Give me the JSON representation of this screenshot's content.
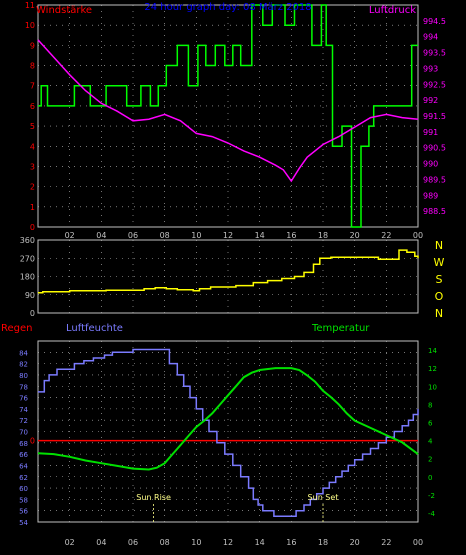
{
  "colors": {
    "background": "#000000",
    "panel_border": "#c0c0c0",
    "grid": "#c0c0c0",
    "wind": "#00ff00",
    "pressure": "#ff00ff",
    "direction": "#ffff00",
    "humidity": "#7b7bff",
    "temperature": "#00e000",
    "rain": "#ff0000",
    "axis_red": "#ff0000",
    "axis_magenta": "#ff00ff",
    "axis_white": "#c0c0c0",
    "axis_yellow": "#ffff00",
    "axis_green": "#00e000",
    "axis_blue": "#7b7bff",
    "title_blue": "#0000ff",
    "sun_label": "#ffff88"
  },
  "chart_data": [
    {
      "type": "line",
      "title": "24 hour graph day: 08 März 2018",
      "left_label": "Windstärke",
      "right_label": "Luftdruck",
      "x_ticks": [
        "02",
        "04",
        "06",
        "08",
        "10",
        "12",
        "14",
        "16",
        "18",
        "20",
        "22",
        "00"
      ],
      "x_range": [
        0,
        24
      ],
      "ylim_left": [
        0,
        11
      ],
      "ylim_right": [
        988.0,
        995.0
      ],
      "y_left_ticks": [
        "0",
        "1",
        "2",
        "3",
        "4",
        "5",
        "6",
        "7",
        "8",
        "9",
        "10",
        "11"
      ],
      "y_right_ticks": [
        "988.5",
        "989",
        "989.5",
        "990",
        "990.5",
        "991",
        "991.5",
        "992",
        "992.5",
        "993",
        "993.5",
        "994",
        "994.5"
      ],
      "grid": true,
      "series": [
        {
          "key": "wind",
          "name": "Windstärke",
          "axis": "left",
          "step": true,
          "x": [
            0,
            0.2,
            0.6,
            2.3,
            3.3,
            4.3,
            5.6,
            6.5,
            7.1,
            7.6,
            8.1,
            8.8,
            9.5,
            10.1,
            10.6,
            11.2,
            11.8,
            12.3,
            12.8,
            13.5,
            14.2,
            14.8,
            15.6,
            16.2,
            17.3,
            17.9,
            18.2,
            18.6,
            19.2,
            19.8,
            20.4,
            20.9,
            21.2,
            21.6,
            22.6,
            23.1,
            23.6,
            24.0
          ],
          "values": [
            6,
            7,
            6,
            7,
            6,
            7,
            6,
            7,
            6,
            7,
            8,
            9,
            7,
            9,
            8,
            9,
            8,
            9,
            8,
            11,
            10,
            11,
            10,
            11,
            9,
            11,
            9,
            4,
            5,
            0,
            4,
            5,
            6,
            6,
            6,
            6,
            9,
            9
          ]
        },
        {
          "key": "pressure",
          "name": "Luftdruck",
          "axis": "right",
          "step": false,
          "x": [
            0,
            1,
            2,
            3,
            4,
            5,
            6,
            7,
            8,
            9,
            10,
            11,
            12,
            13,
            14,
            15,
            15.5,
            16,
            16.5,
            17,
            18,
            19,
            20,
            21,
            22,
            23,
            24
          ],
          "values": [
            993.9,
            993.35,
            992.8,
            992.3,
            991.9,
            991.65,
            991.35,
            991.4,
            991.55,
            991.35,
            990.95,
            990.85,
            990.65,
            990.4,
            990.2,
            989.95,
            989.8,
            989.45,
            989.85,
            990.2,
            990.6,
            990.85,
            991.15,
            991.45,
            991.55,
            991.45,
            991.4
          ]
        }
      ]
    },
    {
      "type": "line",
      "right_label": "NWSON",
      "x_range": [
        0,
        24
      ],
      "ylim": [
        0,
        360
      ],
      "y_ticks": [
        "0",
        "90",
        "180",
        "270",
        "360"
      ],
      "grid": true,
      "series": [
        {
          "key": "direction",
          "axis": "left",
          "step": true,
          "x": [
            0,
            0.3,
            2,
            4.3,
            6.7,
            7.4,
            8.1,
            8.8,
            9.8,
            10.2,
            10.9,
            12.5,
            13.6,
            14.5,
            15.4,
            16.2,
            16.8,
            17.4,
            17.8,
            18.5,
            21.5,
            22.8,
            23.3,
            23.8,
            24.0
          ],
          "values": [
            100,
            105,
            110,
            112,
            120,
            125,
            120,
            115,
            110,
            120,
            128,
            135,
            150,
            160,
            170,
            180,
            200,
            240,
            270,
            275,
            265,
            310,
            300,
            280,
            270
          ]
        }
      ]
    },
    {
      "type": "line",
      "left_label": "Regen",
      "humidity_label": "Luftfeuchte",
      "right_label": "Temperatur",
      "x_ticks": [
        "02",
        "04",
        "06",
        "08",
        "10",
        "12",
        "14",
        "16",
        "18",
        "20",
        "22",
        "00"
      ],
      "x_range": [
        0,
        24
      ],
      "ylim_humidity": [
        54,
        86
      ],
      "ylim_temperature": [
        -5,
        15
      ],
      "y_humidity_ticks": [
        "54",
        "56",
        "58",
        "60",
        "62",
        "64",
        "66",
        "68",
        "70",
        "72",
        "74",
        "76",
        "78",
        "80",
        "82",
        "84"
      ],
      "y_temperature_ticks": [
        "-4",
        "-2",
        "0",
        "2",
        "4",
        "6",
        "8",
        "10",
        "12",
        "14"
      ],
      "rain_tick": "0",
      "grid": true,
      "annotations": [
        {
          "text": "Sun Rise",
          "x": 7.3
        },
        {
          "text": "Sun Set",
          "x": 18.0
        }
      ],
      "series": [
        {
          "key": "humidity",
          "name": "Luftfeuchte",
          "axis": "humidity",
          "step": true,
          "x": [
            0,
            0.4,
            0.7,
            1.2,
            2.3,
            2.9,
            3.5,
            4.2,
            4.7,
            5.3,
            6,
            6.7,
            7.5,
            7.9,
            8.3,
            8.8,
            9.2,
            9.6,
            10,
            10.4,
            10.8,
            11.3,
            11.8,
            12.3,
            12.8,
            13.3,
            13.6,
            13.9,
            14.2,
            14.5,
            14.9,
            15.3,
            15.8,
            16.3,
            16.8,
            17.2,
            17.6,
            18,
            18.4,
            18.8,
            19.2,
            19.6,
            20,
            20.5,
            21,
            21.5,
            22,
            22.5,
            23,
            23.4,
            23.7,
            24.0
          ],
          "values": [
            77,
            79,
            80,
            81,
            82,
            82.5,
            83,
            83.5,
            84,
            84,
            84.5,
            84.5,
            84.5,
            84.5,
            82,
            80,
            78,
            76,
            74,
            72,
            70,
            68,
            66,
            64,
            62,
            60,
            58,
            57,
            56,
            56,
            55,
            55,
            55,
            56,
            57,
            58,
            59,
            60,
            61,
            62,
            63,
            64,
            65,
            66,
            67,
            68,
            69,
            70,
            71,
            72,
            73,
            74
          ]
        },
        {
          "key": "temperature",
          "name": "Temperatur",
          "axis": "temperature",
          "step": false,
          "x": [
            0,
            1,
            2,
            3,
            4,
            5,
            6,
            7,
            7.5,
            8,
            8.5,
            9,
            9.5,
            10,
            10.5,
            11,
            11.5,
            12,
            12.5,
            13,
            13.5,
            14,
            15,
            16,
            16.5,
            17,
            17.5,
            18,
            18.5,
            19,
            19.5,
            20,
            21,
            22,
            23,
            24
          ],
          "values": [
            2.6,
            2.5,
            2.2,
            1.8,
            1.5,
            1.2,
            0.9,
            0.8,
            1,
            1.5,
            2.5,
            3.5,
            4.5,
            5.5,
            6.2,
            7,
            8,
            9,
            10,
            11,
            11.5,
            11.8,
            12,
            12,
            11.8,
            11.2,
            10.5,
            9.5,
            8.8,
            8,
            7,
            6.2,
            5.4,
            4.6,
            3.8,
            2.5
          ]
        },
        {
          "key": "rain",
          "name": "Regen",
          "axis": "rain",
          "step": false,
          "x": [
            0,
            24
          ],
          "values": [
            0,
            0
          ]
        }
      ]
    }
  ]
}
